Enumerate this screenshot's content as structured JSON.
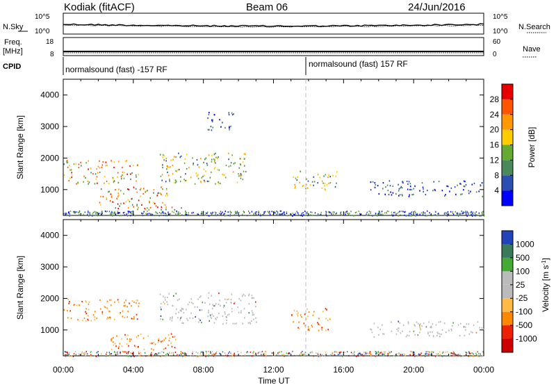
{
  "header": {
    "station": "Kodiak (fitACF)",
    "beam": "Beam 06",
    "date": "24/Jun/2016"
  },
  "side_labels": {
    "nsky": "N.Sky",
    "nsky_ticks": [
      "10^5",
      "10^0"
    ],
    "nsearch": "N.Search",
    "nsearch_ticks": [
      "10^5",
      "10^0"
    ],
    "freq": "Freq.",
    "freq_unit": "[MHz]",
    "freq_ticks": [
      "18",
      "8"
    ],
    "nave": "Nave",
    "nave_ticks": [
      "60",
      "0"
    ],
    "cpid": "CPID"
  },
  "cpid_segments": [
    {
      "label": "normalsound (fast) -157 RF",
      "start": "00:00",
      "end": "14:00"
    },
    {
      "label": "normalsound (fast) 157 RF",
      "start": "14:00",
      "end": "24:00"
    }
  ],
  "axes": {
    "xlabel": "Time UT",
    "xticks": [
      "00:00",
      "04:00",
      "08:00",
      "12:00",
      "16:00",
      "20:00",
      "00:00"
    ],
    "ylabel": "Slant Range [km]",
    "yticks": [
      "1000",
      "2000",
      "3000",
      "4000"
    ]
  },
  "colorbars": {
    "power": {
      "title": "Power [dB]",
      "ticks": [
        "4",
        "8",
        "12",
        "16",
        "20",
        "24",
        "28"
      ],
      "colors": [
        "#0000ff",
        "#2a4fb0",
        "#4a8a5a",
        "#66aa33",
        "#ffcc00",
        "#ff9900",
        "#ff5500",
        "#e60000"
      ]
    },
    "velocity": {
      "title": "Velocity [m s",
      "title_sup": "-1",
      "title_end": "]",
      "ticks": [
        "1000",
        "500",
        "100",
        "25",
        "-25",
        "-100",
        "-500",
        "-1000"
      ],
      "colors": [
        "#2244bb",
        "#3a7a5a",
        "#44aa33",
        "#bbbbbb",
        "#bbbbbb",
        "#ffbb44",
        "#ff8800",
        "#ee2200",
        "#cc0000"
      ]
    }
  },
  "chart_data": {
    "type": "heatmap",
    "x_range_hours": [
      0,
      24
    ],
    "y_range_km": [
      180,
      4500
    ],
    "power_panel": {
      "clusters": [
        {
          "t0": 0.0,
          "t1": 4.3,
          "r0": 1200,
          "r1": 1950,
          "intensity": "high"
        },
        {
          "t0": 2.0,
          "t1": 6.0,
          "r0": 380,
          "r1": 1100,
          "intensity": "high"
        },
        {
          "t0": 4.5,
          "t1": 7.0,
          "r0": 380,
          "r1": 500,
          "intensity": "high"
        },
        {
          "t0": 5.5,
          "t1": 10.5,
          "r0": 1200,
          "r1": 2200,
          "intensity": "medium"
        },
        {
          "t0": 8.2,
          "t1": 9.8,
          "r0": 2900,
          "r1": 3500,
          "intensity": "low"
        },
        {
          "t0": 13.0,
          "t1": 15.6,
          "r0": 1000,
          "r1": 1600,
          "intensity": "medium"
        },
        {
          "t0": 17.5,
          "t1": 24.0,
          "r0": 800,
          "r1": 1300,
          "intensity": "low"
        }
      ]
    },
    "velocity_panel": {
      "clusters": [
        {
          "t0": 0.0,
          "t1": 4.3,
          "r0": 1300,
          "r1": 2000,
          "velocity": "-100 to -500"
        },
        {
          "t0": 2.5,
          "t1": 6.5,
          "r0": 380,
          "r1": 900,
          "velocity": "-100 to -500"
        },
        {
          "t0": 5.5,
          "t1": 11.0,
          "r0": 1200,
          "r1": 2200,
          "velocity": "-25 to 25"
        },
        {
          "t0": 13.0,
          "t1": 15.2,
          "r0": 1000,
          "r1": 1700,
          "velocity": "-100 to -500"
        },
        {
          "t0": 17.5,
          "t1": 24.0,
          "r0": 800,
          "r1": 1300,
          "velocity": "-25 to 25"
        }
      ]
    },
    "dashed_marker_hour": 14.0
  }
}
